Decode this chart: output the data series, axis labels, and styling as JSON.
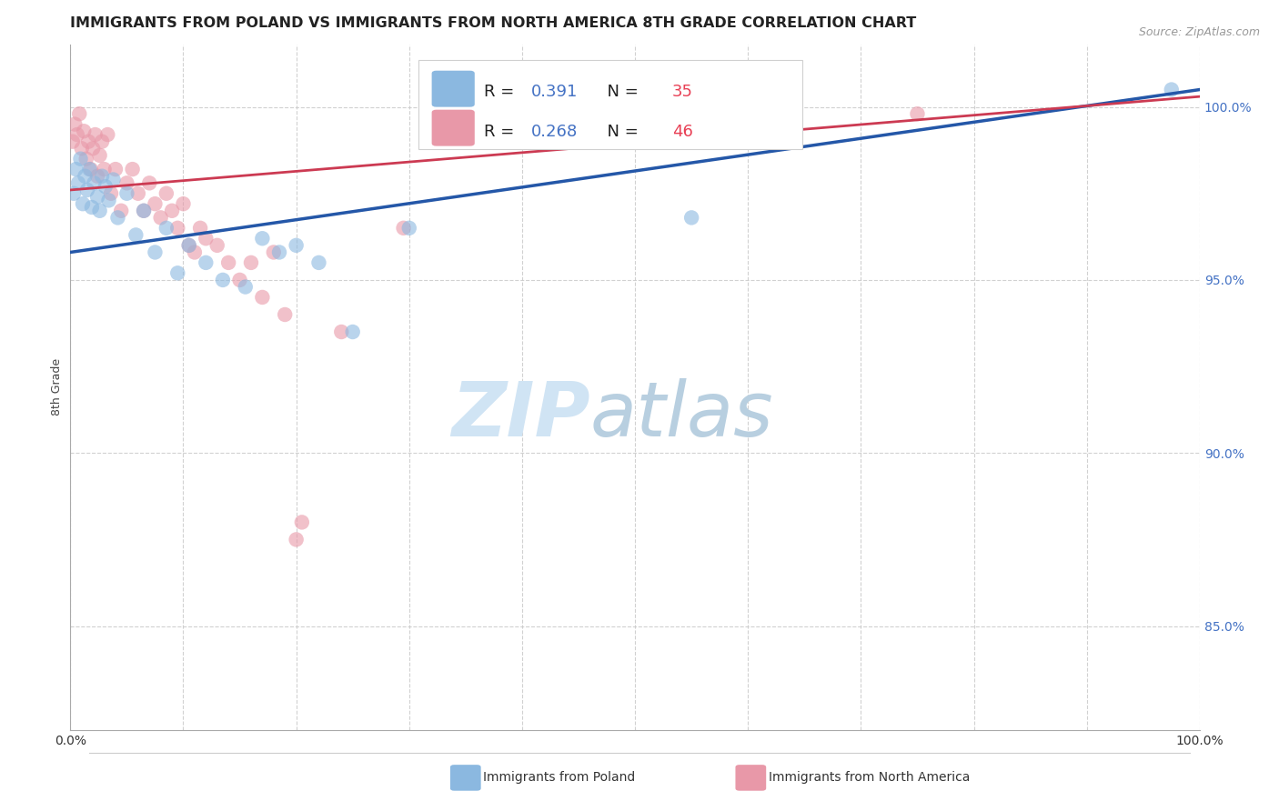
{
  "title": "IMMIGRANTS FROM POLAND VS IMMIGRANTS FROM NORTH AMERICA 8TH GRADE CORRELATION CHART",
  "source": "Source: ZipAtlas.com",
  "ylabel": "8th Grade",
  "xlim": [
    0,
    100
  ],
  "ylim": [
    82.0,
    101.8
  ],
  "yticks": [
    85.0,
    90.0,
    95.0,
    100.0
  ],
  "ytick_labels": [
    "85.0%",
    "90.0%",
    "95.0%",
    "100.0%"
  ],
  "xticks": [
    0,
    10,
    20,
    30,
    40,
    50,
    60,
    70,
    80,
    90,
    100
  ],
  "poland_x": [
    0.3,
    0.5,
    0.7,
    0.9,
    1.1,
    1.3,
    1.5,
    1.7,
    1.9,
    2.1,
    2.4,
    2.6,
    2.8,
    3.1,
    3.4,
    3.8,
    4.2,
    5.0,
    5.8,
    6.5,
    7.5,
    8.5,
    9.5,
    10.5,
    12.0,
    13.5,
    15.5,
    17.0,
    18.5,
    20.0,
    22.0,
    25.0,
    30.0,
    55.0,
    97.5
  ],
  "poland_y": [
    97.5,
    98.2,
    97.8,
    98.5,
    97.2,
    98.0,
    97.6,
    98.2,
    97.1,
    97.8,
    97.4,
    97.0,
    98.0,
    97.7,
    97.3,
    97.9,
    96.8,
    97.5,
    96.3,
    97.0,
    95.8,
    96.5,
    95.2,
    96.0,
    95.5,
    95.0,
    94.8,
    96.2,
    95.8,
    96.0,
    95.5,
    93.5,
    96.5,
    96.8,
    100.5
  ],
  "na_x": [
    0.2,
    0.4,
    0.6,
    0.8,
    1.0,
    1.2,
    1.4,
    1.6,
    1.8,
    2.0,
    2.2,
    2.4,
    2.6,
    2.8,
    3.0,
    3.3,
    3.6,
    4.0,
    4.5,
    5.0,
    5.5,
    6.0,
    6.5,
    7.0,
    7.5,
    8.0,
    8.5,
    9.0,
    9.5,
    10.0,
    10.5,
    11.0,
    11.5,
    12.0,
    13.0,
    14.0,
    15.0,
    16.0,
    17.0,
    18.0,
    19.0,
    20.0,
    20.5,
    24.0,
    29.5,
    75.0
  ],
  "na_y": [
    99.0,
    99.5,
    99.2,
    99.8,
    98.8,
    99.3,
    98.5,
    99.0,
    98.2,
    98.8,
    99.2,
    98.0,
    98.6,
    99.0,
    98.2,
    99.2,
    97.5,
    98.2,
    97.0,
    97.8,
    98.2,
    97.5,
    97.0,
    97.8,
    97.2,
    96.8,
    97.5,
    97.0,
    96.5,
    97.2,
    96.0,
    95.8,
    96.5,
    96.2,
    96.0,
    95.5,
    95.0,
    95.5,
    94.5,
    95.8,
    94.0,
    87.5,
    88.0,
    93.5,
    96.5,
    99.8
  ],
  "poland_R": 0.391,
  "poland_N": 35,
  "na_R": 0.268,
  "na_N": 46,
  "poland_line_x": [
    0,
    100
  ],
  "poland_line_y": [
    95.8,
    100.5
  ],
  "na_line_x": [
    0,
    100
  ],
  "na_line_y": [
    97.6,
    100.3
  ],
  "poland_color": "#8bb8e0",
  "na_color": "#e898a8",
  "poland_line_color": "#2457a8",
  "na_line_color": "#cc3a52",
  "r_val_color": "#4472c4",
  "n_val_color": "#e84055",
  "tick_color": "#4472c4",
  "background_color": "#ffffff",
  "grid_color": "#cccccc",
  "title_fontsize": 11.5,
  "axis_label_fontsize": 9,
  "tick_fontsize": 10,
  "legend_fontsize": 13,
  "source_fontsize": 9
}
